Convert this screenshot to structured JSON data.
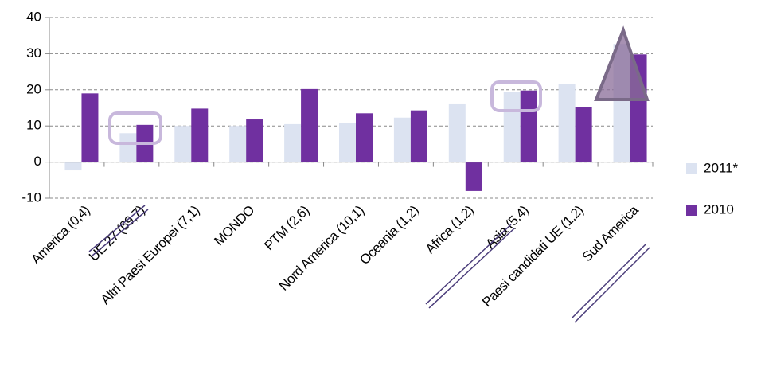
{
  "chart_data": {
    "type": "bar",
    "categories": [
      "America (0,4)",
      "UE 27 (69,7)",
      "Altri Paesi Europei (7,1)",
      "MONDO",
      "PTM (2,6)",
      "Nord America (10,1)",
      "Oceania (1,2)",
      "Africa (1,2)",
      "Asia (5,4)",
      "Paesi candidati UE (1,2)",
      "Sud America"
    ],
    "series": [
      {
        "name": "2011*",
        "color": "#dce3f1",
        "values": [
          -2.3,
          8,
          10,
          10,
          10.5,
          10.8,
          12.3,
          16,
          19.5,
          21.6,
          32.7
        ]
      },
      {
        "name": "2010",
        "color": "#7030a0",
        "values": [
          19,
          10.3,
          14.8,
          11.8,
          20.2,
          13.5,
          14.3,
          -8,
          19.8,
          15.2,
          29.8
        ]
      }
    ],
    "ylim": [
      -10,
      40
    ],
    "yticks": [
      -10,
      0,
      10,
      20,
      30,
      40
    ],
    "grid": true,
    "legend": "right"
  }
}
